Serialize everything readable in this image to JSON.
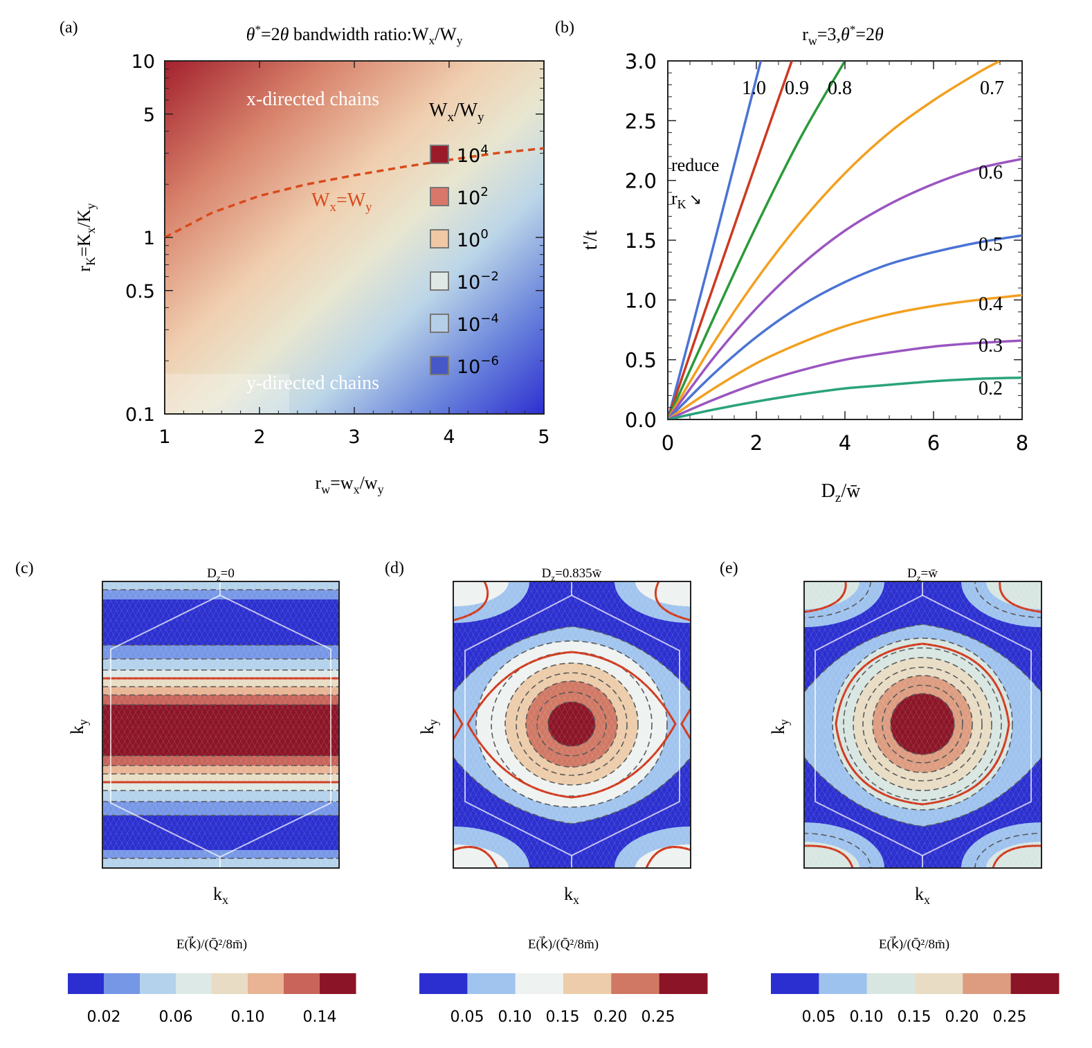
{
  "chart_data": [
    {
      "panel": "(a)",
      "type": "heatmap",
      "title": "θ*=2θ bandwidth ratio:Wx/Wy",
      "title_parts": {
        "theta1": "θ",
        "star": "*",
        "eq": "=2",
        "theta2": "θ",
        "text": " bandwidth ratio:W",
        "sub1": "x",
        "slash": "/W",
        "sub2": "y"
      },
      "xlabel": "rw=wx/wy",
      "xlabel_parts": {
        "a": "r",
        "as": "w",
        "b": "=w",
        "bs": "x",
        "c": "/w",
        "cs": "y"
      },
      "ylabel": "rK=Kx/Ky",
      "ylabel_parts": {
        "a": "r",
        "as": "K",
        "b": "=K",
        "bs": "x",
        "c": "/K",
        "cs": "y"
      },
      "xlim": [
        1,
        5
      ],
      "ylim": [
        0.1,
        10
      ],
      "yscale": "log",
      "xticks": [
        1,
        2,
        3,
        4,
        5
      ],
      "xtick_labels": [
        "1",
        "2",
        "3",
        "4",
        "5"
      ],
      "yticks": [
        0.1,
        0.5,
        1,
        5,
        10
      ],
      "ytick_labels": [
        "0.1",
        "0.5",
        "1",
        "5",
        "10"
      ],
      "legend": {
        "title": "Wx/Wy",
        "title_parts": {
          "a": "W",
          "as": "x",
          "b": "/W",
          "bs": "y"
        },
        "entries": [
          {
            "base": "10",
            "exp": "4",
            "color": "#9b1b2a"
          },
          {
            "base": "10",
            "exp": "2",
            "color": "#d9786a"
          },
          {
            "base": "10",
            "exp": "0",
            "color": "#f0c8a4"
          },
          {
            "base": "10",
            "exp": "−2",
            "color": "#dfe8e4"
          },
          {
            "base": "10",
            "exp": "−4",
            "color": "#b6cfe8"
          },
          {
            "base": "10",
            "exp": "−6",
            "color": "#4657c8"
          }
        ]
      },
      "boundary_curve": {
        "label_parts": {
          "a": "W",
          "as": "x",
          "b": "=W",
          "bs": "y"
        },
        "label": "Wx=Wy",
        "color": "#d84a1c",
        "points": [
          [
            1,
            1
          ],
          [
            1.5,
            1.38
          ],
          [
            2,
            1.72
          ],
          [
            2.5,
            2.0
          ],
          [
            3,
            2.25
          ],
          [
            3.5,
            2.5
          ],
          [
            4,
            2.75
          ],
          [
            4.5,
            3.0
          ],
          [
            5,
            3.2
          ]
        ]
      },
      "annotations": [
        "x-directed chains",
        "y-directed chains"
      ]
    },
    {
      "panel": "(b)",
      "type": "line",
      "title": "rw=3,θ*=2θ",
      "title_parts": {
        "a": "r",
        "as": "w",
        "b": "=3,",
        "theta1": "θ",
        "star": "*",
        "eq": "=2",
        "theta2": "θ"
      },
      "xlabel": "Dz/w̄",
      "xlabel_parts": {
        "a": "D",
        "as": "z",
        "b": "/w̄"
      },
      "ylabel": "t'/t",
      "xlim": [
        0,
        8
      ],
      "ylim": [
        0,
        3
      ],
      "xticks": [
        0,
        2,
        4,
        6,
        8
      ],
      "xtick_labels": [
        "0",
        "2",
        "4",
        "6",
        "8"
      ],
      "yticks": [
        0,
        0.5,
        1.0,
        1.5,
        2.0,
        2.5,
        3.0
      ],
      "ytick_labels": [
        "0.0",
        "0.5",
        "1.0",
        "1.5",
        "2.0",
        "2.5",
        "3.0"
      ],
      "annotation": {
        "line1": "reduce",
        "line2a": "r",
        "line2s": "K",
        "line2b": "↘"
      },
      "series": [
        {
          "name": "1.0",
          "color": "#4a73d4",
          "x": [
            0,
            0.5,
            1,
            1.5,
            2.1
          ],
          "y": [
            0,
            0.7,
            1.41,
            2.13,
            3.0
          ]
        },
        {
          "name": "0.9",
          "color": "#cc3a22",
          "x": [
            0,
            0.7,
            1.4,
            2.1,
            2.8
          ],
          "y": [
            0,
            0.76,
            1.51,
            2.26,
            3.0
          ]
        },
        {
          "name": "0.8",
          "color": "#2a9a3a",
          "x": [
            0,
            1,
            2,
            3,
            4
          ],
          "y": [
            0,
            0.82,
            1.62,
            2.36,
            3.0
          ]
        },
        {
          "name": "0.7",
          "color": "#f2a020",
          "x": [
            0,
            1,
            2,
            3,
            4,
            5,
            6,
            7,
            7.5
          ],
          "y": [
            0,
            0.62,
            1.17,
            1.65,
            2.06,
            2.4,
            2.67,
            2.9,
            3.0
          ]
        },
        {
          "name": "0.6",
          "color": "#9a55c0",
          "x": [
            0,
            1,
            2,
            3,
            4,
            5,
            6,
            7,
            8
          ],
          "y": [
            0,
            0.5,
            0.93,
            1.29,
            1.58,
            1.8,
            1.97,
            2.1,
            2.18
          ]
        },
        {
          "name": "0.5",
          "color": "#4a73d4",
          "x": [
            0,
            1,
            2,
            3,
            4,
            5,
            6,
            7,
            8
          ],
          "y": [
            0,
            0.37,
            0.69,
            0.95,
            1.15,
            1.3,
            1.4,
            1.48,
            1.54
          ]
        },
        {
          "name": "0.4",
          "color": "#f2a020",
          "x": [
            0,
            1,
            2,
            3,
            4,
            5,
            6,
            7,
            8
          ],
          "y": [
            0,
            0.25,
            0.47,
            0.64,
            0.78,
            0.88,
            0.95,
            1.0,
            1.04
          ]
        },
        {
          "name": "0.3",
          "color": "#9a55c0",
          "x": [
            0,
            1,
            2,
            3,
            4,
            5,
            6,
            7,
            8
          ],
          "y": [
            0,
            0.16,
            0.3,
            0.41,
            0.5,
            0.56,
            0.61,
            0.64,
            0.66
          ]
        },
        {
          "name": "0.2",
          "color": "#2aa37a",
          "x": [
            0,
            1,
            2,
            3,
            4,
            5,
            6,
            7,
            8
          ],
          "y": [
            0,
            0.08,
            0.15,
            0.21,
            0.26,
            0.29,
            0.32,
            0.34,
            0.35
          ]
        }
      ]
    },
    {
      "panel": "(c)",
      "type": "heatmap",
      "title": "Dz=0",
      "title_parts": {
        "a": "D",
        "as": "z",
        "b": "=0"
      },
      "xlabel": "kx",
      "xlabel_parts": {
        "a": "k",
        "as": "x"
      },
      "ylabel": "ky",
      "ylabel_parts": {
        "a": "k",
        "as": "y"
      },
      "colorbar_label": "E(k⃗)/(Q̄²/8m̄)",
      "colorbar_colors": [
        "#2b2fcf",
        "#7696e6",
        "#b4d2ec",
        "#dde9e6",
        "#e8dcc4",
        "#e8b494",
        "#c8645a",
        "#8b1426"
      ],
      "colorbar_ticks": [
        "0.02",
        "0.06",
        "0.10",
        "0.14"
      ],
      "pattern": "horizontal bands"
    },
    {
      "panel": "(d)",
      "type": "heatmap",
      "title": "Dz=0.835w̄",
      "title_parts": {
        "a": "D",
        "as": "z",
        "b": "=0.835w̄"
      },
      "xlabel": "kx",
      "xlabel_parts": {
        "a": "k",
        "as": "x"
      },
      "ylabel": "ky",
      "ylabel_parts": {
        "a": "k",
        "as": "y"
      },
      "colorbar_label": "E(k⃗)/(Q̄²/8m̄)",
      "colorbar_colors": [
        "#2b2fcf",
        "#a0c4ee",
        "#eef2f0",
        "#ecccaa",
        "#d07864",
        "#8b1426"
      ],
      "colorbar_ticks": [
        "0.05",
        "0.10",
        "0.15",
        "0.20",
        "0.25"
      ],
      "pattern": "concentric rings"
    },
    {
      "panel": "(e)",
      "type": "heatmap",
      "title": "Dz=w̄",
      "title_parts": {
        "a": "D",
        "as": "z",
        "b": "=w̄"
      },
      "xlabel": "kx",
      "xlabel_parts": {
        "a": "k",
        "as": "x"
      },
      "ylabel": "ky",
      "ylabel_parts": {
        "a": "k",
        "as": "y"
      },
      "colorbar_label": "E(k⃗)/(Q̄²/8m̄)",
      "colorbar_colors": [
        "#2b2fcf",
        "#9ec2ee",
        "#d8e6e2",
        "#e8dcc4",
        "#dd9c80",
        "#8b1426"
      ],
      "colorbar_ticks": [
        "0.05",
        "0.10",
        "0.15",
        "0.20",
        "0.25"
      ],
      "pattern": "concentric rings"
    }
  ]
}
